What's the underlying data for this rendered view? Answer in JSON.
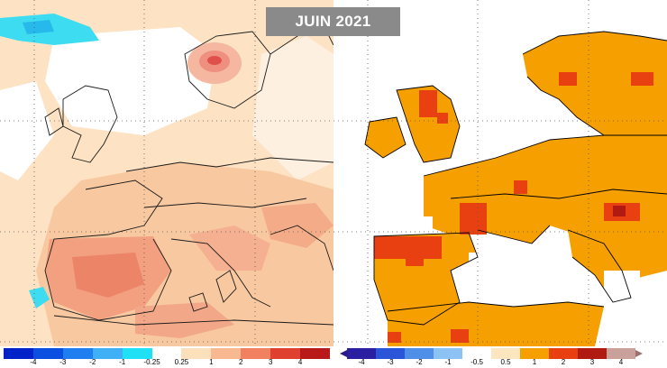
{
  "title": "JUIN 2021",
  "left_map": {
    "legend_ticks": [
      "-4",
      "-3",
      "-2",
      "-1",
      "-0.25",
      "0.25",
      "1",
      "2",
      "3",
      "4"
    ],
    "legend_colors": [
      "#0022c8",
      "#0a4fe0",
      "#1f7ff0",
      "#3fb0f5",
      "#20e0f5",
      "#ffffff",
      "#fce0bc",
      "#f8b890",
      "#f08060",
      "#e04030",
      "#b81818"
    ]
  },
  "right_map": {
    "legend_ticks": [
      "-4",
      "-3",
      "-2",
      "-1",
      "-0.5",
      "0.5",
      "1",
      "2",
      "3",
      "4"
    ],
    "legend_colors": [
      "#2c1ea0",
      "#2b55d8",
      "#4f8fe8",
      "#8dc2f5",
      "#ffffff",
      "#fbe6bf",
      "#f5a000",
      "#e84010",
      "#b01a10",
      "#c9a09a"
    ],
    "arrow_colors": {
      "low": "#2a1a8c",
      "high": "#a07070"
    }
  }
}
